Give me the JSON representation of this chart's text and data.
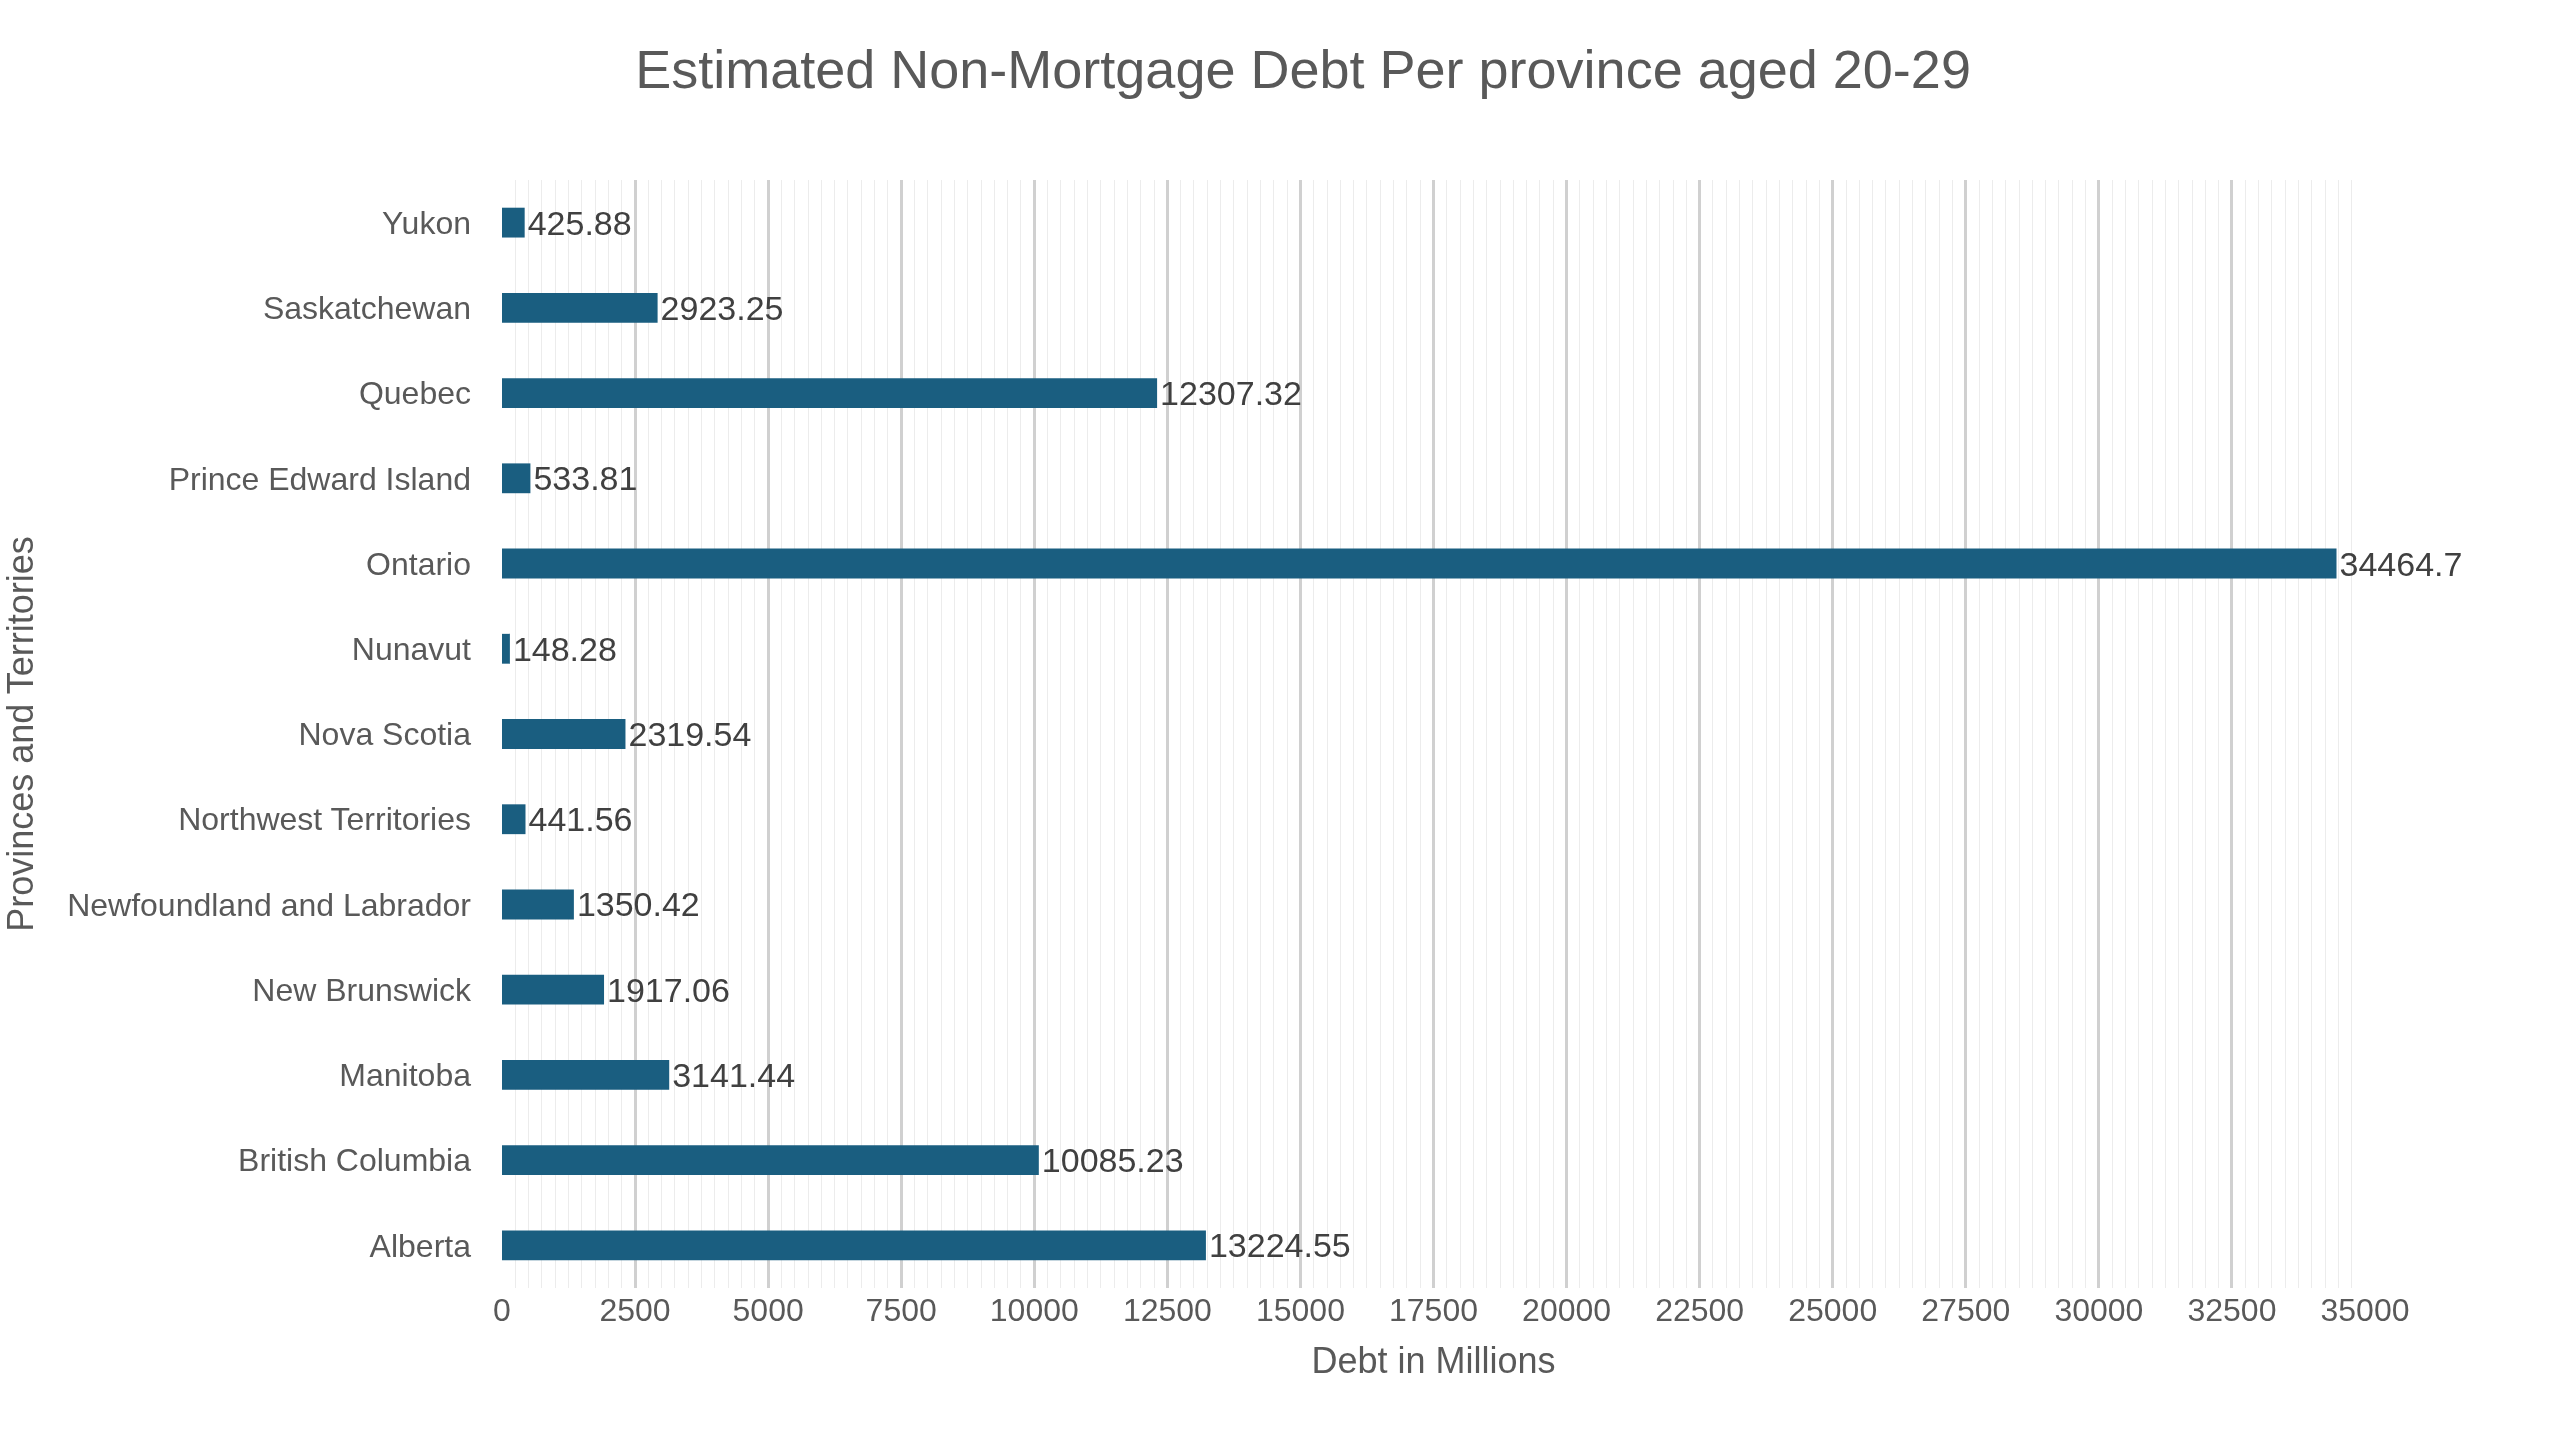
{
  "chart_data": {
    "type": "bar",
    "orientation": "horizontal",
    "title": "Estimated Non-Mortgage Debt Per province aged 20-29",
    "xlabel": "Debt in Millions",
    "ylabel": "Provinces and Territories",
    "categories": [
      "Yukon",
      "Saskatchewan",
      "Quebec",
      "Prince Edward Island",
      "Ontario",
      "Nunavut",
      "Nova Scotia",
      "Northwest Territories",
      "Newfoundland and Labrador",
      "New Brunswick",
      "Manitoba",
      "British Columbia",
      "Alberta"
    ],
    "values": [
      425.88,
      2923.25,
      12307.32,
      533.81,
      34464.7,
      148.28,
      2319.54,
      441.56,
      1350.42,
      1917.06,
      3141.44,
      10085.23,
      13224.55
    ],
    "color": "#1a5e80",
    "data_labels": true,
    "xlim": [
      0,
      35000
    ],
    "xticks": [
      0,
      2500,
      5000,
      7500,
      10000,
      12500,
      15000,
      17500,
      20000,
      22500,
      25000,
      27500,
      30000,
      32500,
      35000
    ],
    "grid": "x"
  }
}
